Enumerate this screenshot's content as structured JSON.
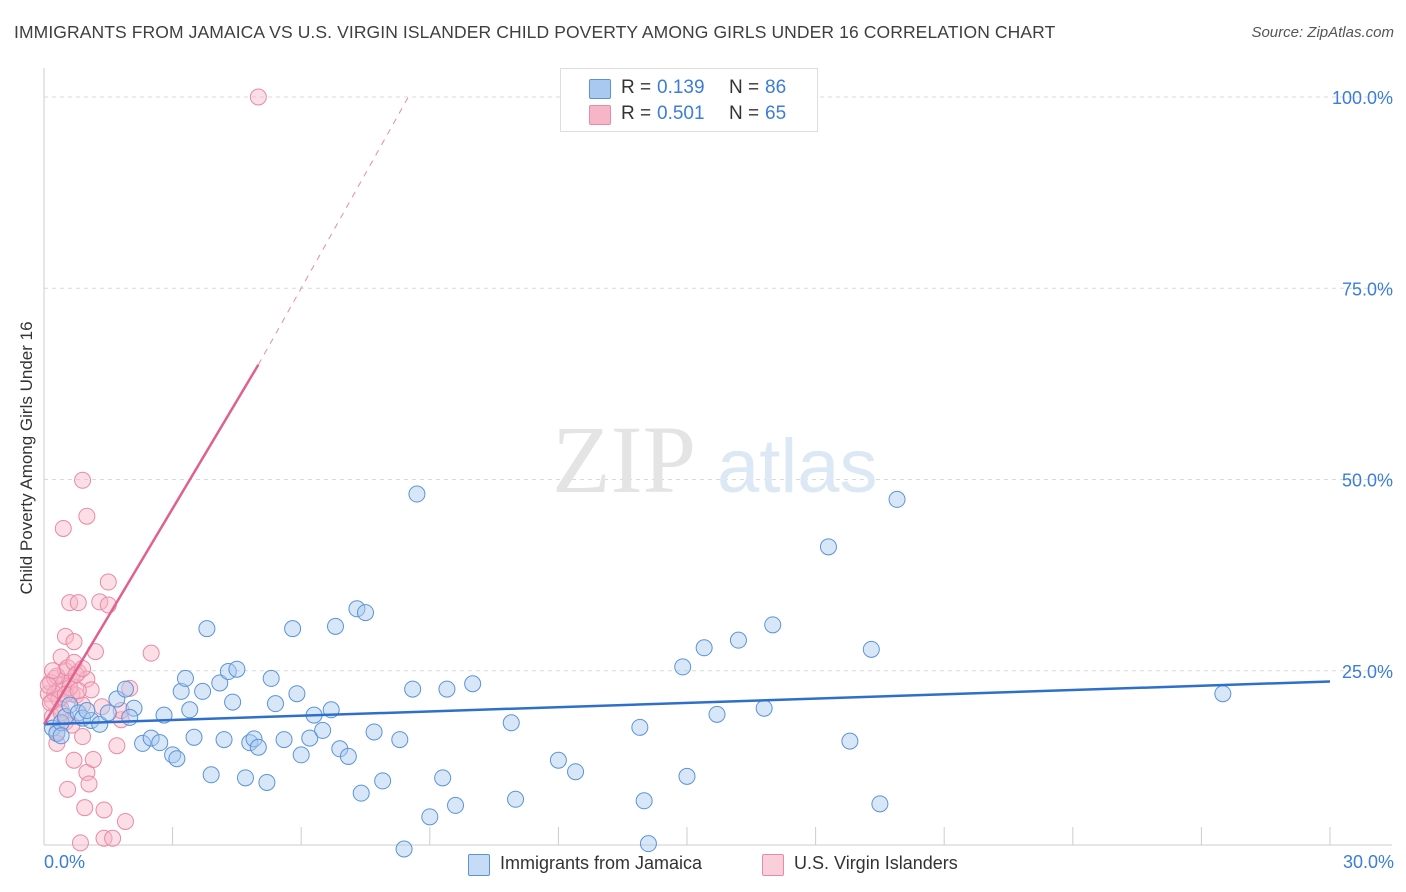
{
  "title": "IMMIGRANTS FROM JAMAICA VS U.S. VIRGIN ISLANDER CHILD POVERTY AMONG GIRLS UNDER 16 CORRELATION CHART",
  "source": "Source: ZipAtlas.com",
  "legend_top": {
    "rows": [
      {
        "r_label": "R =",
        "r_value": "0.139",
        "n_label": "N =",
        "n_value": "86"
      },
      {
        "r_label": "R =",
        "r_value": "0.501",
        "n_label": "N =",
        "n_value": "65"
      }
    ]
  },
  "legend_bottom": {
    "items": [
      {
        "label": "Immigrants from Jamaica"
      },
      {
        "label": "U.S. Virgin Islanders"
      }
    ]
  },
  "x_labels": {
    "min": "0.0%",
    "max": "30.0%"
  },
  "colors": {
    "blue_fill": "#a9c9f0",
    "blue_stroke": "#5b93d9",
    "blue_line": "#2f6fcc",
    "pink_fill": "#f6b6c8",
    "pink_stroke": "#e88aa8",
    "pink_line": "#e0608e",
    "grid": "#d9d9d9",
    "axis_text": "#3b7dd8"
  },
  "chart_data": {
    "type": "scatter",
    "title": "IMMIGRANTS FROM JAMAICA VS U.S. VIRGIN ISLANDER CHILD POVERTY AMONG GIRLS UNDER 16 CORRELATION CHART",
    "xlabel": "",
    "ylabel": "Child Poverty Among Girls Under 16",
    "xlim": [
      0,
      30
    ],
    "ylim": [
      0,
      100
    ],
    "y_ticks": [
      25,
      50,
      75,
      100
    ],
    "y_tick_labels": [
      "25.0%",
      "50.0%",
      "75.0%",
      "100.0%"
    ],
    "watermark": {
      "part1": "ZIP",
      "part2": "atlas"
    },
    "series": [
      {
        "name": "Immigrants from Jamaica",
        "color": "blue",
        "r": 0.139,
        "n": 86,
        "trend": {
          "x0": 0,
          "y0": 18.0,
          "x1": 30,
          "y1": 23.6
        },
        "points": [
          [
            0.2,
            17.5
          ],
          [
            0.3,
            16.8
          ],
          [
            0.4,
            18.2
          ],
          [
            0.5,
            19.0
          ],
          [
            0.6,
            20.5
          ],
          [
            0.8,
            19.5
          ],
          [
            0.9,
            18.8
          ],
          [
            1.1,
            18.5
          ],
          [
            1.3,
            18.0
          ],
          [
            1.5,
            19.5
          ],
          [
            1.7,
            21.3
          ],
          [
            1.9,
            22.6
          ],
          [
            2.1,
            20.1
          ],
          [
            2.3,
            15.5
          ],
          [
            2.5,
            16.2
          ],
          [
            2.7,
            15.6
          ],
          [
            2.8,
            19.2
          ],
          [
            3.0,
            14.0
          ],
          [
            3.1,
            13.5
          ],
          [
            3.2,
            22.3
          ],
          [
            3.3,
            24.0
          ],
          [
            3.4,
            19.9
          ],
          [
            3.5,
            16.3
          ],
          [
            3.7,
            22.3
          ],
          [
            3.8,
            30.5
          ],
          [
            3.9,
            11.4
          ],
          [
            4.1,
            23.4
          ],
          [
            4.2,
            16.0
          ],
          [
            4.3,
            24.9
          ],
          [
            4.4,
            20.9
          ],
          [
            4.5,
            25.2
          ],
          [
            4.7,
            11.0
          ],
          [
            4.8,
            15.6
          ],
          [
            4.9,
            16.1
          ],
          [
            5.0,
            15.0
          ],
          [
            5.2,
            10.4
          ],
          [
            5.3,
            24.0
          ],
          [
            5.4,
            20.7
          ],
          [
            5.6,
            16.0
          ],
          [
            5.8,
            30.5
          ],
          [
            5.9,
            22.0
          ],
          [
            6.0,
            14.0
          ],
          [
            6.2,
            16.2
          ],
          [
            6.3,
            19.2
          ],
          [
            6.5,
            17.2
          ],
          [
            6.7,
            19.9
          ],
          [
            6.8,
            30.8
          ],
          [
            6.9,
            14.8
          ],
          [
            7.1,
            13.8
          ],
          [
            7.3,
            33.1
          ],
          [
            7.4,
            9.0
          ],
          [
            7.5,
            32.6
          ],
          [
            7.7,
            17.0
          ],
          [
            7.9,
            10.6
          ],
          [
            8.3,
            16.0
          ],
          [
            8.4,
            1.7
          ],
          [
            8.6,
            22.6
          ],
          [
            8.7,
            48.1
          ],
          [
            9.0,
            5.9
          ],
          [
            9.3,
            11.0
          ],
          [
            9.4,
            22.6
          ],
          [
            9.6,
            7.4
          ],
          [
            10.0,
            23.3
          ],
          [
            10.9,
            18.2
          ],
          [
            11.0,
            8.2
          ],
          [
            12.0,
            13.3
          ],
          [
            12.4,
            11.8
          ],
          [
            13.9,
            17.6
          ],
          [
            14.0,
            8.0
          ],
          [
            14.1,
            2.4
          ],
          [
            14.9,
            25.5
          ],
          [
            15.0,
            11.2
          ],
          [
            15.4,
            28.0
          ],
          [
            15.7,
            19.3
          ],
          [
            16.2,
            29.0
          ],
          [
            16.8,
            20.1
          ],
          [
            17.0,
            31.0
          ],
          [
            18.3,
            41.2
          ],
          [
            18.8,
            15.8
          ],
          [
            19.3,
            27.8
          ],
          [
            19.5,
            7.6
          ],
          [
            19.9,
            47.4
          ],
          [
            27.5,
            22.0
          ],
          [
            0.4,
            16.5
          ],
          [
            1.0,
            19.8
          ],
          [
            2.0,
            18.9
          ]
        ]
      },
      {
        "name": "U.S. Virgin Islanders",
        "color": "pink",
        "r": 0.501,
        "n": 65,
        "trend": {
          "x0": 0,
          "y0": 18.0,
          "x1": 5.0,
          "y1": 65.0,
          "dash_x1": 8.5,
          "dash_y1": 100.0
        },
        "points": [
          [
            0.1,
            22.0
          ],
          [
            0.15,
            23.5
          ],
          [
            0.2,
            21.0
          ],
          [
            0.2,
            19.0
          ],
          [
            0.25,
            24.0
          ],
          [
            0.3,
            17.0
          ],
          [
            0.3,
            15.5
          ],
          [
            0.35,
            22.5
          ],
          [
            0.4,
            26.8
          ],
          [
            0.4,
            20.0
          ],
          [
            0.45,
            23.2
          ],
          [
            0.5,
            29.5
          ],
          [
            0.5,
            25.0
          ],
          [
            0.5,
            18.3
          ],
          [
            0.55,
            9.5
          ],
          [
            0.6,
            33.9
          ],
          [
            0.6,
            23.6
          ],
          [
            0.65,
            22.0
          ],
          [
            0.7,
            28.8
          ],
          [
            0.7,
            13.3
          ],
          [
            0.75,
            21.8
          ],
          [
            0.8,
            33.9
          ],
          [
            0.8,
            24.8
          ],
          [
            0.85,
            2.5
          ],
          [
            0.9,
            49.9
          ],
          [
            0.9,
            20.5
          ],
          [
            0.9,
            16.4
          ],
          [
            0.95,
            7.1
          ],
          [
            1.0,
            11.7
          ],
          [
            1.0,
            45.2
          ],
          [
            1.0,
            23.9
          ],
          [
            1.05,
            10.2
          ],
          [
            1.1,
            22.5
          ],
          [
            1.15,
            13.4
          ],
          [
            1.2,
            27.5
          ],
          [
            1.3,
            34.0
          ],
          [
            1.35,
            20.3
          ],
          [
            1.4,
            6.8
          ],
          [
            1.4,
            3.1
          ],
          [
            1.5,
            36.6
          ],
          [
            1.5,
            33.6
          ],
          [
            1.6,
            3.1
          ],
          [
            1.7,
            15.2
          ],
          [
            1.8,
            18.6
          ],
          [
            1.8,
            19.8
          ],
          [
            1.9,
            5.3
          ],
          [
            2.0,
            22.7
          ],
          [
            2.5,
            27.3
          ],
          [
            5.0,
            100.0
          ],
          [
            0.45,
            43.6
          ],
          [
            0.3,
            24.3
          ],
          [
            0.25,
            22.0
          ],
          [
            0.2,
            25.0
          ],
          [
            0.35,
            21.3
          ],
          [
            0.4,
            19.5
          ],
          [
            0.55,
            25.4
          ],
          [
            0.6,
            22.8
          ],
          [
            0.65,
            17.9
          ],
          [
            0.7,
            26.1
          ],
          [
            0.75,
            24.5
          ],
          [
            0.1,
            23.1
          ],
          [
            0.15,
            20.8
          ],
          [
            0.5,
            21.9
          ],
          [
            0.8,
            22.4
          ],
          [
            0.9,
            25.3
          ]
        ]
      }
    ]
  }
}
